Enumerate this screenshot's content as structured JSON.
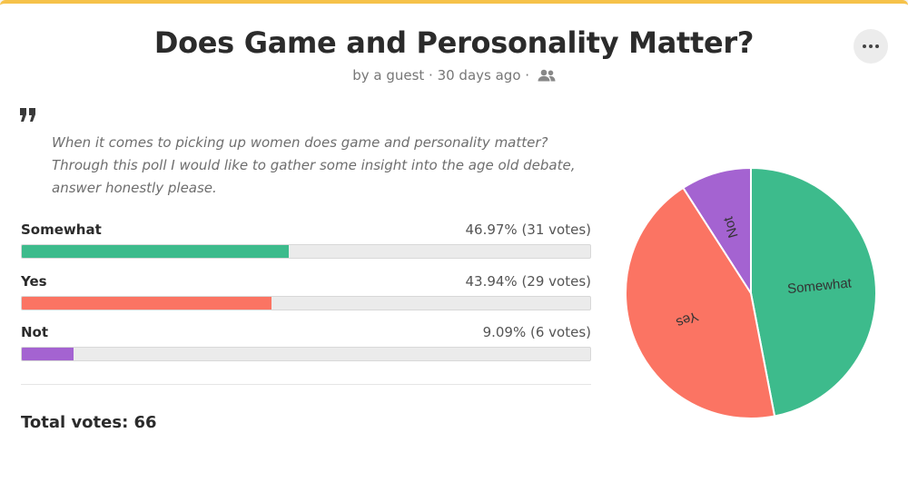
{
  "poll": {
    "title": "Does Game and Perosonality Matter?",
    "meta": "by a guest · 30 days ago ·",
    "description_lines": [
      "When it comes to picking up women does game and personality matter?",
      "Through this poll I would like to gather some insight into the age old debate,",
      "answer honestly please."
    ],
    "options": [
      {
        "label": "Somewhat",
        "stat": "46.97% (31 votes)",
        "percent": 46.97,
        "color": "#3dbb8c"
      },
      {
        "label": "Yes",
        "stat": "43.94% (29 votes)",
        "percent": 43.94,
        "color": "#fb7463"
      },
      {
        "label": "Not",
        "stat": "9.09% (6 votes)",
        "percent": 9.09,
        "color": "#a463d1"
      }
    ],
    "total_label": "Total votes: 66"
  },
  "icons": {
    "more": "more-horizontal-icon",
    "quote": "quote-icon",
    "people": "people-icon"
  },
  "colors": {
    "accent": "#f6c24a"
  },
  "chart_data": {
    "type": "pie",
    "categories": [
      "Somewhat",
      "Yes",
      "Not"
    ],
    "values": [
      31,
      29,
      6
    ],
    "colors": [
      "#3dbb8c",
      "#fb7463",
      "#a463d1"
    ]
  }
}
